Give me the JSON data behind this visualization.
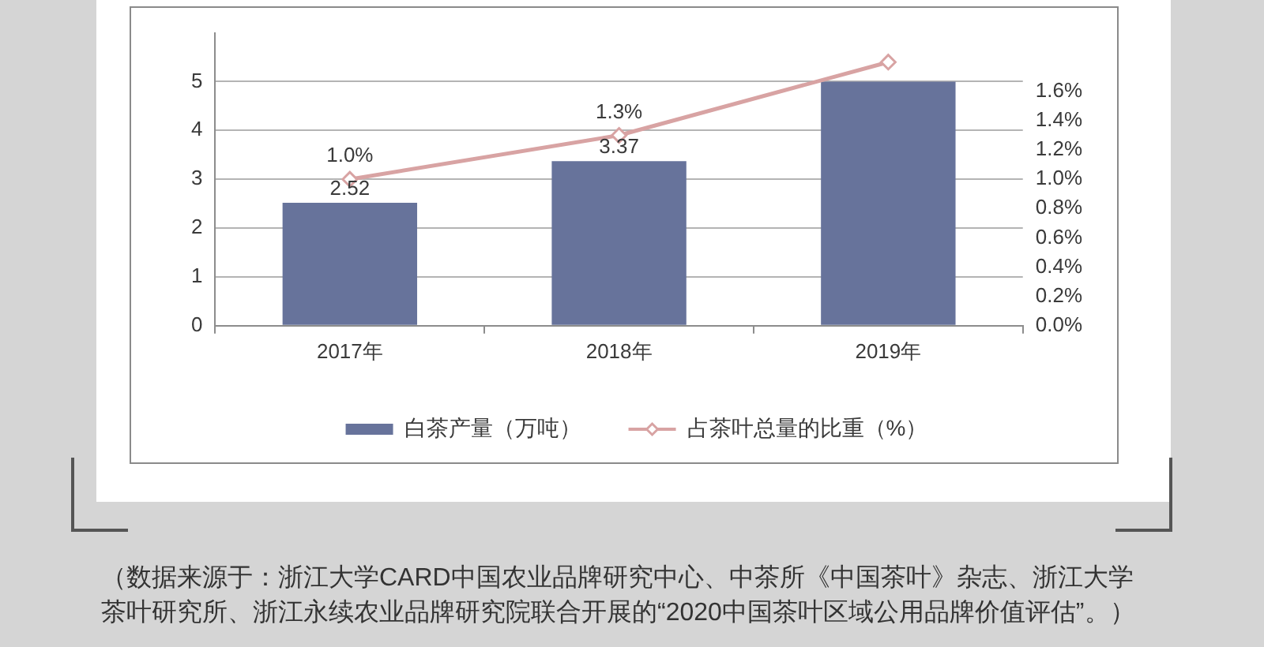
{
  "chart_data": {
    "type": "bar",
    "categories": [
      "2017年",
      "2018年",
      "2019年"
    ],
    "series": [
      {
        "name": "白茶产量（万吨）",
        "color": "#67739b",
        "values": [
          2.52,
          3.37,
          5.0
        ],
        "value_labels": [
          "2.52",
          "3.37",
          null
        ]
      },
      {
        "name": "占茶叶总量的比重（%）",
        "type": "line",
        "axis": "y2",
        "color": "#d8a3a3",
        "values": [
          1.0,
          1.3,
          1.8
        ],
        "value_labels": [
          "1.0%",
          "1.3%",
          null
        ]
      }
    ],
    "ylim": [
      0,
      6
    ],
    "yticks": [
      0,
      1,
      2,
      3,
      4,
      5
    ],
    "y2lim": [
      0,
      2.0
    ],
    "y2ticks": [
      {
        "value": 0,
        "label": "0.0%"
      },
      {
        "value": 0.2,
        "label": "0.2%"
      },
      {
        "value": 0.4,
        "label": "0.4%"
      },
      {
        "value": 0.6,
        "label": "0.6%"
      },
      {
        "value": 0.8,
        "label": "0.8%"
      },
      {
        "value": 1.0,
        "label": "1.0%"
      },
      {
        "value": 1.2,
        "label": "1.2%"
      },
      {
        "value": 1.4,
        "label": "1.4%"
      },
      {
        "value": 1.6,
        "label": "1.6%"
      }
    ],
    "grid": "y",
    "legend": "bottom",
    "marker": "diamond",
    "annotations": [
      "（数据来源于：浙江大学CARD中国农业品牌研究中心、中茶所《中国茶叶》杂志、浙江大学茶叶研究所、浙江永续农业品牌研究院联合开展的“2020中国茶叶区域公用品牌价值评估”。）"
    ]
  }
}
